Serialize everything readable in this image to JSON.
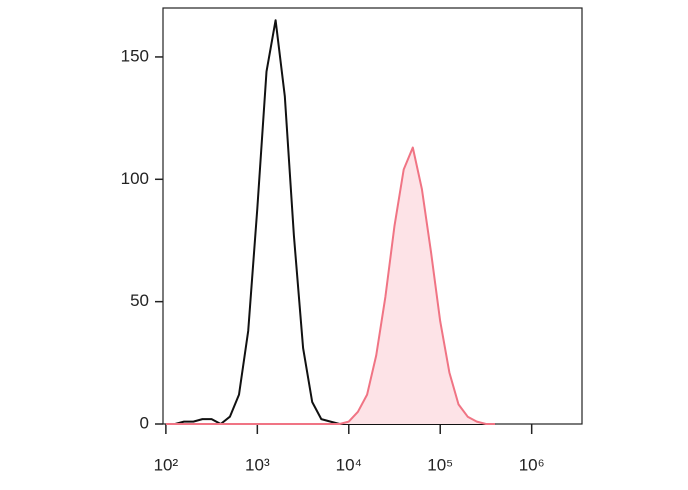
{
  "chart_data": {
    "type": "histogram-line",
    "x": [
      100,
      126,
      158,
      200,
      251,
      316,
      398,
      501,
      631,
      794,
      1000,
      1259,
      1585,
      1995,
      2512,
      3162,
      3981,
      5012,
      6310,
      7943,
      10000,
      12589,
      15849,
      19953,
      25119,
      31623,
      39811,
      50119,
      63096,
      79433,
      100000,
      125893,
      158489,
      199526,
      251189,
      316228,
      398107
    ],
    "series": [
      {
        "color": "#111111",
        "fill": "none",
        "values": [
          0,
          0,
          1,
          1,
          2,
          2,
          0,
          3,
          12,
          38,
          88,
          144,
          165,
          134,
          77,
          31,
          9,
          2,
          1,
          0,
          0,
          0,
          0,
          0,
          0,
          0,
          0,
          0,
          0,
          0,
          0,
          0,
          0,
          0,
          0,
          0,
          0
        ]
      },
      {
        "color": "#f07484",
        "fill": "#fde3e7",
        "values": [
          0,
          0,
          0,
          0,
          0,
          0,
          0,
          0,
          0,
          0,
          0,
          0,
          0,
          0,
          0,
          0,
          0,
          0,
          0,
          0,
          1,
          5,
          12,
          28,
          52,
          81,
          104,
          113,
          96,
          70,
          42,
          21,
          8,
          3,
          1,
          0,
          0
        ]
      }
    ],
    "xscale": "log",
    "xlim": [
      93,
      3550000
    ],
    "xticks": [
      {
        "value": 100,
        "label": "10²"
      },
      {
        "value": 1000,
        "label": "10³"
      },
      {
        "value": 10000,
        "label": "10⁴"
      },
      {
        "value": 100000,
        "label": "10⁵"
      },
      {
        "value": 1000000,
        "label": "10⁶"
      }
    ],
    "ylim": [
      0,
      170
    ],
    "yticks": [
      0,
      50,
      100,
      150
    ],
    "grid": false
  }
}
